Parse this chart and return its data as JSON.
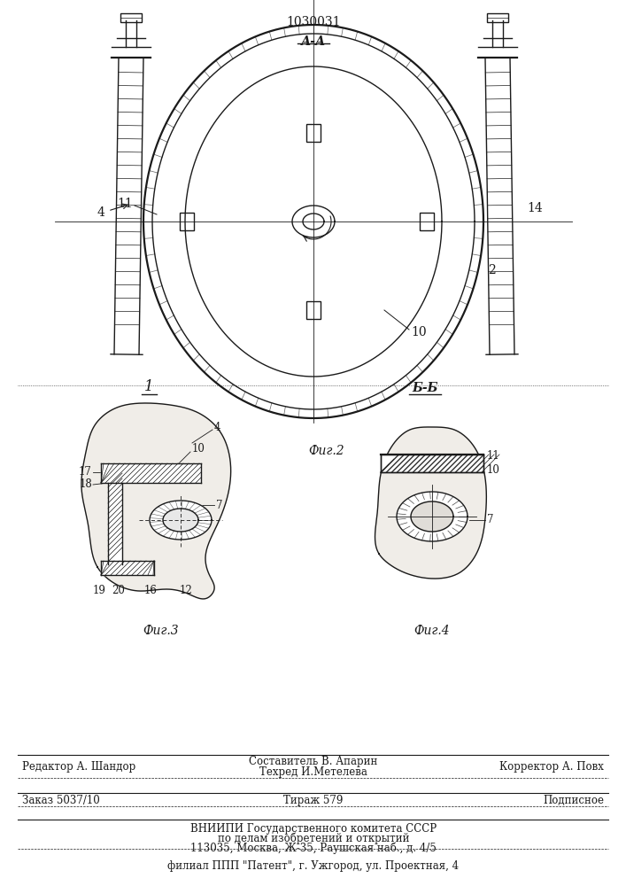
{
  "patent_number": "1030031",
  "fig2_label": "Фиг.2",
  "fig3_label": "Фиг.3",
  "fig4_label": "Фиг.4",
  "section_aa": "А-А",
  "section_bb": "Б-Б",
  "view_label": "1",
  "line_color": "#1a1a1a",
  "footer": {
    "editor": "Редактор А. Шандор",
    "composer": "Составитель В. Апарин",
    "techred": "Техред И.Метелева",
    "corrector": "Корректор А. Повх",
    "order": "Заказ 5037/10",
    "tirazh": "Тираж 579",
    "podpisnoe": "Подписное",
    "vniipи": "ВНИИПИ Государственного комитета СССР",
    "po_delam": "по делам изобретений и открытий",
    "address": "113035, Москва, Ж-35, Раушская наб., д. 4/5",
    "filial": "филиал ППП \"Патент\", г. Ужгород, ул. Проектная, 4"
  }
}
